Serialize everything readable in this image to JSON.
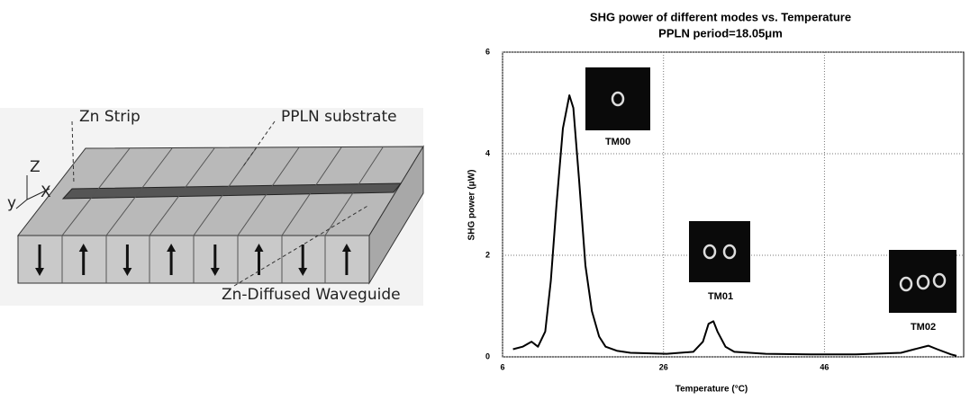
{
  "diagram": {
    "strip_label": "Zn Strip",
    "substrate_label": "PPLN substrate",
    "axis_z": "Z",
    "axis_x": "X",
    "axis_y": "y",
    "waveguide_label": "Zn-Diffused Waveguide"
  },
  "chart_data": {
    "type": "line",
    "title": "SHG power of different modes vs. Temperature",
    "subtitle": "PPLN period=18.05μm",
    "x_label": "Temperature (°C)",
    "y_label": "SHG power (μW)",
    "x": [
      7.3,
      8.5,
      9.6,
      10.4,
      11.3,
      12,
      12.7,
      13.5,
      14.3,
      14.8,
      15.5,
      16.3,
      17.1,
      18,
      18.8,
      20.2,
      21.9,
      26.4,
      29.7,
      30.9,
      31.6,
      32.2,
      32.7,
      33.7,
      34.8,
      38.7,
      44.3,
      49.9,
      55.5,
      57.2,
      58.9,
      60,
      61.7,
      62.4
    ],
    "values": [
      0.15,
      0.2,
      0.3,
      0.2,
      0.5,
      1.5,
      3,
      4.5,
      5.15,
      4.9,
      3.5,
      1.8,
      0.9,
      0.4,
      0.2,
      0.12,
      0.08,
      0.06,
      0.1,
      0.3,
      0.65,
      0.7,
      0.5,
      0.2,
      0.1,
      0.06,
      0.05,
      0.05,
      0.08,
      0.15,
      0.22,
      0.15,
      0.05,
      0.02
    ],
    "color": "#000000",
    "xlim": [
      6,
      63.3
    ],
    "xticks": [
      6,
      26,
      46
    ],
    "ylim": [
      0,
      6
    ],
    "yticks": [
      0,
      2,
      4,
      6
    ],
    "grid": true,
    "annotations": [
      "TM00",
      "TM01",
      "TM02"
    ]
  }
}
